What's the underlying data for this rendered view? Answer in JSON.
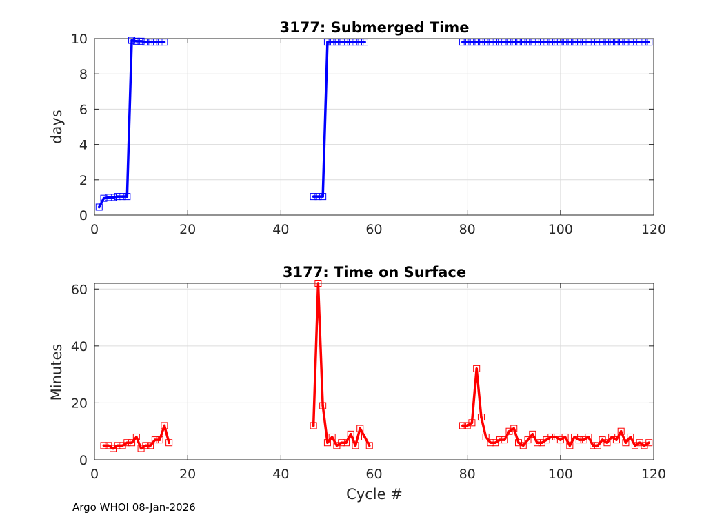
{
  "footer": "Argo WHOI 08-Jan-2026",
  "chart_data": [
    {
      "type": "line",
      "title": "3177: Submerged Time",
      "xlabel": "",
      "ylabel": "days",
      "xlim": [
        0,
        120
      ],
      "ylim": [
        0,
        10
      ],
      "xticks": [
        0,
        20,
        40,
        60,
        80,
        100,
        120
      ],
      "yticks": [
        0,
        2,
        4,
        6,
        8,
        10
      ],
      "grid": true,
      "color": "#0000ff",
      "marker": "square",
      "x": [
        1,
        2,
        3,
        4,
        5,
        6,
        7,
        8,
        9,
        10,
        11,
        12,
        13,
        14,
        15,
        null,
        47,
        48,
        49,
        50,
        51,
        52,
        53,
        54,
        55,
        56,
        57,
        58,
        null,
        79,
        80,
        81,
        82,
        83,
        84,
        85,
        86,
        87,
        88,
        89,
        90,
        91,
        92,
        93,
        94,
        95,
        96,
        97,
        98,
        99,
        100,
        101,
        102,
        103,
        104,
        105,
        106,
        107,
        108,
        109,
        110,
        111,
        112,
        113,
        114,
        115,
        116,
        117,
        118,
        119
      ],
      "y": [
        0.45,
        0.95,
        1.0,
        1.0,
        1.05,
        1.05,
        1.05,
        9.9,
        9.85,
        9.85,
        9.8,
        9.8,
        9.8,
        9.8,
        9.8,
        null,
        1.05,
        1.05,
        1.05,
        9.8,
        9.8,
        9.8,
        9.8,
        9.8,
        9.8,
        9.8,
        9.8,
        9.8,
        null,
        9.8,
        9.8,
        9.8,
        9.8,
        9.8,
        9.8,
        9.8,
        9.8,
        9.8,
        9.8,
        9.8,
        9.8,
        9.8,
        9.8,
        9.8,
        9.8,
        9.8,
        9.8,
        9.8,
        9.8,
        9.8,
        9.8,
        9.8,
        9.8,
        9.8,
        9.8,
        9.8,
        9.8,
        9.8,
        9.8,
        9.8,
        9.8,
        9.8,
        9.8,
        9.8,
        9.8,
        9.8,
        9.8,
        9.8,
        9.8,
        9.8
      ]
    },
    {
      "type": "line",
      "title": "3177: Time on Surface",
      "xlabel": "Cycle #",
      "ylabel": "Minutes",
      "xlim": [
        0,
        120
      ],
      "ylim": [
        0,
        62
      ],
      "xticks": [
        0,
        20,
        40,
        60,
        80,
        100,
        120
      ],
      "yticks": [
        0,
        20,
        40,
        60
      ],
      "grid": true,
      "color": "#ff0000",
      "marker": "square",
      "x": [
        2,
        3,
        4,
        5,
        6,
        7,
        8,
        9,
        10,
        11,
        12,
        13,
        14,
        15,
        16,
        null,
        47,
        48,
        49,
        50,
        51,
        52,
        53,
        54,
        55,
        56,
        57,
        58,
        59,
        null,
        79,
        80,
        81,
        82,
        83,
        84,
        85,
        86,
        87,
        88,
        89,
        90,
        91,
        92,
        93,
        94,
        95,
        96,
        97,
        98,
        99,
        100,
        101,
        102,
        103,
        104,
        105,
        106,
        107,
        108,
        109,
        110,
        111,
        112,
        113,
        114,
        115,
        116,
        117,
        118,
        119
      ],
      "y": [
        5,
        5,
        4,
        5,
        5,
        6,
        6,
        8,
        4,
        5,
        5,
        7,
        7,
        12,
        6,
        null,
        12,
        62,
        19,
        6,
        8,
        5,
        6,
        6,
        9,
        5,
        11,
        8,
        5,
        null,
        12,
        12,
        13,
        32,
        15,
        8,
        6,
        6,
        7,
        7,
        10,
        11,
        6,
        5,
        7,
        9,
        6,
        6,
        7,
        8,
        8,
        7,
        8,
        5,
        8,
        7,
        7,
        8,
        5,
        5,
        7,
        6,
        8,
        7,
        10,
        6,
        8,
        5,
        6,
        5,
        6
      ]
    }
  ]
}
